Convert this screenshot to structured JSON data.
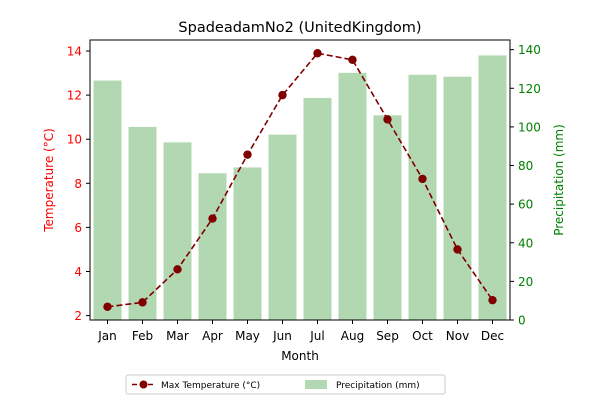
{
  "chart_data": {
    "type": "bar+line",
    "title": "SpadeadamNo2 (UnitedKingdom)",
    "xlabel": "Month",
    "ylabel_left": "Temperature (°C)",
    "ylabel_right": "Precipitation (mm)",
    "categories": [
      "Jan",
      "Feb",
      "Mar",
      "Apr",
      "May",
      "Jun",
      "Jul",
      "Aug",
      "Sep",
      "Oct",
      "Nov",
      "Dec"
    ],
    "y_left": {
      "min": 1.8,
      "max": 14.5,
      "ticks": [
        2,
        4,
        6,
        8,
        10,
        12,
        14
      ]
    },
    "y_right": {
      "min": 0,
      "max": 145,
      "ticks": [
        0,
        20,
        40,
        60,
        80,
        100,
        120,
        140
      ]
    },
    "grid": false,
    "legend_position": "bottom-center",
    "series": [
      {
        "name": "Max Temperature (°C)",
        "kind": "line",
        "axis": "left",
        "color": "#800000",
        "values": [
          2.4,
          2.6,
          4.1,
          6.4,
          9.3,
          12.0,
          13.9,
          13.6,
          10.9,
          8.2,
          5.0,
          2.7
        ]
      },
      {
        "name": "Precipitation (mm)",
        "kind": "bar",
        "axis": "right",
        "color": "#b2d8b2",
        "values": [
          124,
          100,
          92,
          76,
          79,
          96,
          115,
          128,
          106,
          127,
          126,
          137
        ]
      }
    ],
    "colors": {
      "left_axis": "#ff0000",
      "right_axis": "#008000",
      "text": "#000000"
    }
  }
}
